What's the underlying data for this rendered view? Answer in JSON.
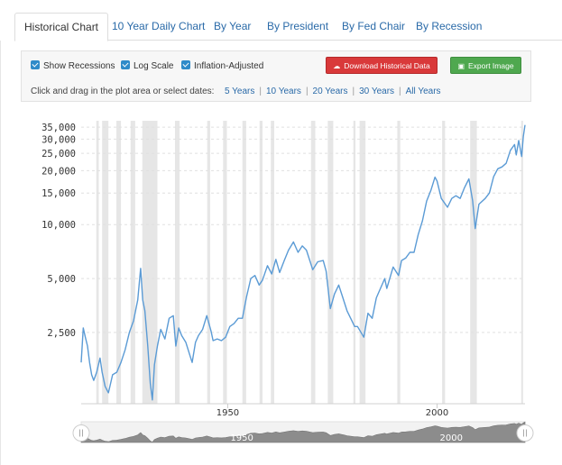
{
  "tabs": [
    {
      "label": "Historical Chart",
      "active": true
    },
    {
      "label": "10 Year Daily Chart",
      "active": false
    },
    {
      "label": "By Year",
      "active": false
    },
    {
      "label": "By President",
      "active": false
    },
    {
      "label": "By Fed Chair",
      "active": false
    },
    {
      "label": "By Recession",
      "active": false
    }
  ],
  "controls": {
    "checkboxes": [
      {
        "label": "Show Recessions",
        "checked": true
      },
      {
        "label": "Log Scale",
        "checked": true
      },
      {
        "label": "Inflation-Adjusted",
        "checked": true
      }
    ],
    "download_label": "Download Historical Data",
    "export_label": "Export Image",
    "date_prompt": "Click and drag in the plot area or select dates:",
    "ranges": [
      "5 Years",
      "10 Years",
      "20 Years",
      "30 Years",
      "All Years"
    ]
  },
  "colors": {
    "accent": "#2f8bc9",
    "line": "#5b9bd5",
    "recession": "#e6e6e6",
    "download_button": "#d9393a",
    "export_button": "#4fa84f",
    "link": "#2a6aa8"
  },
  "icons": {
    "download": "cloud-download-icon",
    "export": "image-icon"
  },
  "chart_data": {
    "type": "line",
    "scale": "log",
    "ylim": [
      1000,
      38000
    ],
    "xlim": [
      1915,
      2021
    ],
    "yticks": [
      2500,
      5000,
      10000,
      15000,
      20000,
      25000,
      30000,
      35000
    ],
    "ytick_labels": [
      "2,500",
      "5,000",
      "10,000",
      "15,000",
      "20,000",
      "25,000",
      "30,000",
      "35,000"
    ],
    "xticks": [
      1950,
      2000
    ],
    "xtick_labels": [
      "1950",
      "2000"
    ],
    "grid": true,
    "recessions": [
      [
        1918.6,
        1919.2
      ],
      [
        1920.0,
        1921.5
      ],
      [
        1923.4,
        1924.5
      ],
      [
        1926.8,
        1927.9
      ],
      [
        1929.6,
        1933.2
      ],
      [
        1937.4,
        1938.5
      ],
      [
        1945.1,
        1945.8
      ],
      [
        1948.9,
        1949.8
      ],
      [
        1953.5,
        1954.4
      ],
      [
        1957.6,
        1958.3
      ],
      [
        1960.3,
        1961.1
      ],
      [
        1969.9,
        1970.9
      ],
      [
        1973.9,
        1975.2
      ],
      [
        1980.0,
        1980.5
      ],
      [
        1981.5,
        1982.9
      ],
      [
        1990.5,
        1991.2
      ],
      [
        2001.2,
        2001.9
      ],
      [
        2007.9,
        2009.5
      ],
      [
        2020.1,
        2020.4
      ]
    ],
    "series": [
      {
        "x": [
          1915,
          1915.5,
          1916,
          1916.5,
          1917,
          1917.5,
          1918,
          1918.7,
          1919.5,
          1920,
          1920.7,
          1921.5,
          1922.5,
          1923.5,
          1924.5,
          1925.5,
          1926.5,
          1927.5,
          1928.5,
          1929.2,
          1929.7,
          1930.2,
          1930.9,
          1931.5,
          1932.0,
          1932.5,
          1933.2,
          1934,
          1935,
          1936,
          1937,
          1937.6,
          1938.3,
          1939,
          1940,
          1941,
          1941.5,
          1942.3,
          1943,
          1944,
          1945,
          1946,
          1946.5,
          1947.5,
          1948.5,
          1949.5,
          1950.5,
          1951.5,
          1952.5,
          1953.5,
          1954.5,
          1955.5,
          1956.5,
          1957.5,
          1958.3,
          1959.5,
          1960.5,
          1961.5,
          1962.4,
          1963.5,
          1964.5,
          1965.7,
          1966.8,
          1967.8,
          1968.8,
          1970.3,
          1971.5,
          1972.8,
          1973.5,
          1974.5,
          1975.5,
          1976.5,
          1977.5,
          1978.5,
          1979.5,
          1980.3,
          1981,
          1982.5,
          1983.5,
          1984.5,
          1985.5,
          1987.5,
          1988,
          1989.5,
          1990.8,
          1991.5,
          1992.5,
          1993.5,
          1994.5,
          1995.5,
          1996.5,
          1997.5,
          1998.5,
          1999.5,
          2000.0,
          2001.0,
          2002.5,
          2003.5,
          2004.5,
          2005.5,
          2006.5,
          2007.6,
          2008.5,
          2009.1,
          2010,
          2011.5,
          2012.5,
          2013.5,
          2014.5,
          2015.5,
          2016.5,
          2017.5,
          2018.5,
          2018.9,
          2019.5,
          2020.2,
          2020.6,
          2021
        ],
        "y": [
          1700,
          2650,
          2350,
          2100,
          1700,
          1450,
          1350,
          1500,
          1800,
          1500,
          1250,
          1150,
          1450,
          1500,
          1700,
          2000,
          2500,
          2900,
          3800,
          5700,
          3800,
          3300,
          2100,
          1300,
          1050,
          1650,
          2100,
          2600,
          2300,
          3000,
          3100,
          2100,
          2650,
          2400,
          2200,
          1850,
          1700,
          2200,
          2400,
          2600,
          3100,
          2550,
          2250,
          2300,
          2250,
          2350,
          2700,
          2800,
          3000,
          3000,
          3950,
          5000,
          5200,
          4600,
          4900,
          5900,
          5300,
          6400,
          5400,
          6300,
          7200,
          8000,
          7000,
          7600,
          7200,
          5600,
          6200,
          6300,
          5500,
          3400,
          4100,
          4600,
          3900,
          3300,
          2950,
          2700,
          2700,
          2350,
          3200,
          3000,
          3900,
          5000,
          4400,
          5800,
          5200,
          6300,
          6500,
          7000,
          7000,
          8800,
          10500,
          13500,
          15500,
          18400,
          17500,
          14000,
          12500,
          14000,
          14500,
          14000,
          16000,
          18000,
          13500,
          9500,
          13000,
          14000,
          15000,
          18500,
          20500,
          21000,
          22000,
          26000,
          28000,
          24500,
          29500,
          24000,
          31000,
          36000
        ]
      }
    ],
    "navigator": {
      "xtick_labels": [
        "1950",
        "2000"
      ]
    }
  }
}
